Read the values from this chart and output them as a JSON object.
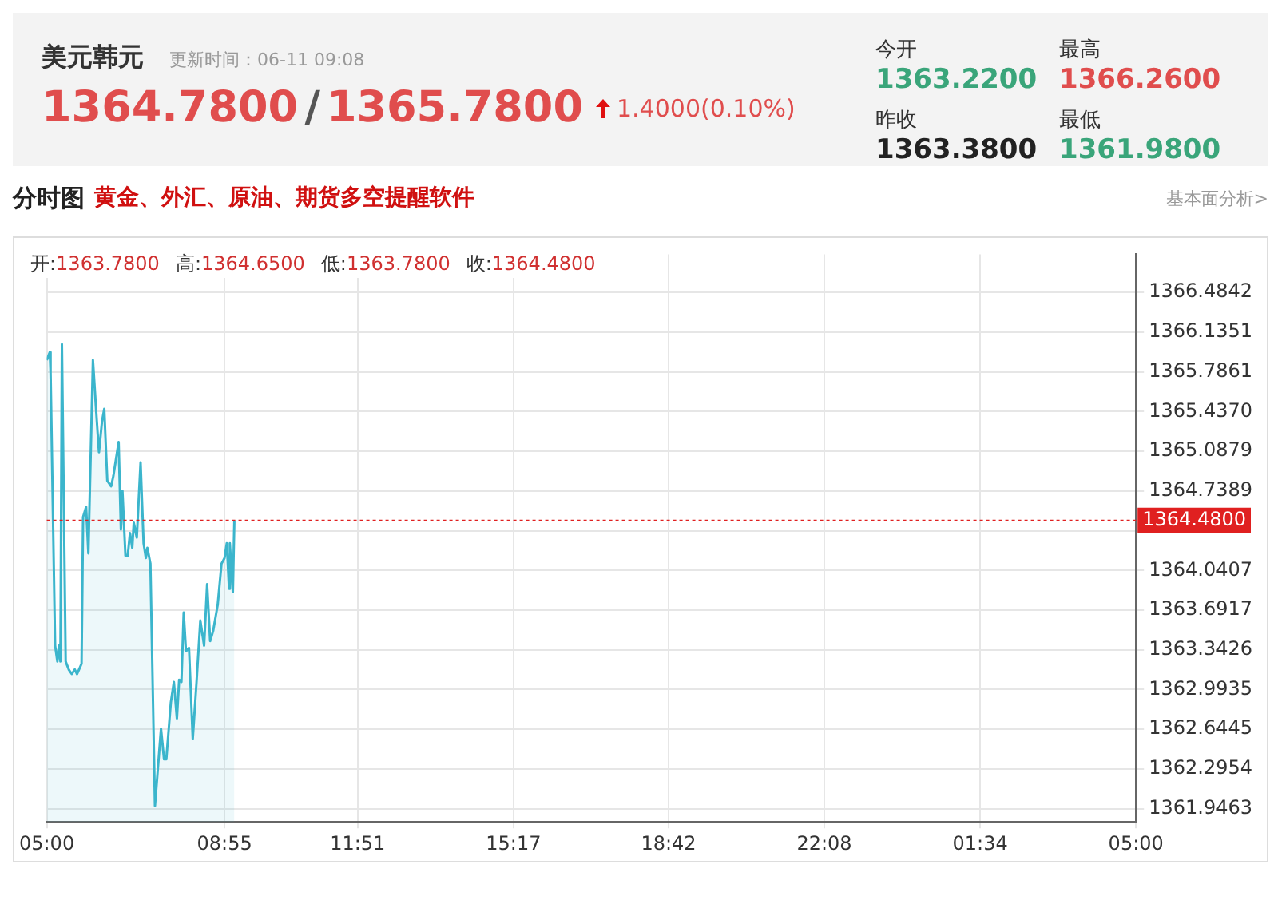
{
  "chart_data": {
    "type": "area",
    "title": "美元韩元",
    "subtitle": "更新时间：06-11 09:08",
    "annotations": [
      "1364.7800",
      "/",
      "1365.7800",
      "1.4000(0.10%)",
      "今开",
      "1363.2200",
      "昨收",
      "1363.3800",
      "最高",
      "1366.2600",
      "最低",
      "1361.9800",
      "分时图",
      "黄金、外汇、原油、期货多空提醒软件",
      "基本面分析>",
      "开:",
      "1363.7800",
      "高:",
      "1364.6500",
      "低:",
      "1363.7800",
      "收:",
      "1364.4800"
    ],
    "x": [
      "--06-11T05:00",
      "--06-11T05:04",
      "--06-11T05:05",
      "--06-11T05:11",
      "--06-11T05:14",
      "--06-11T05:16",
      "--06-11T05:18",
      "--06-11T05:20",
      "--06-11T05:25",
      "--06-11T05:29",
      "--06-11T05:33",
      "--06-11T05:37",
      "--06-11T05:40",
      "--06-11T05:46",
      "--06-11T05:48",
      "--06-11T05:52",
      "--06-11T05:55",
      "--06-11T06:01",
      "--06-11T06:06",
      "--06-11T06:09",
      "--06-11T06:13",
      "--06-11T06:16",
      "--06-11T06:20",
      "--06-11T06:25",
      "--06-11T06:28",
      "--06-11T06:35",
      "--06-11T06:38",
      "--06-11T06:40",
      "--06-11T06:44",
      "--06-11T06:47",
      "--06-11T06:50",
      "--06-11T06:53",
      "--06-11T06:55",
      "--06-11T06:59",
      "--06-11T07:04",
      "--06-11T07:08",
      "--06-11T07:11",
      "--06-11T07:13",
      "--06-11T07:17",
      "--06-11T07:23",
      "--06-11T07:31",
      "--06-11T07:35",
      "--06-11T07:38",
      "--06-11T07:44",
      "--06-11T07:48",
      "--06-11T07:52",
      "--06-11T07:55",
      "--06-11T07:58",
      "--06-11T08:01",
      "--06-11T08:04",
      "--06-11T08:08",
      "--06-11T08:13",
      "--06-11T08:18",
      "--06-11T08:23",
      "--06-11T08:28",
      "--06-11T08:32",
      "--06-11T08:36",
      "--06-11T08:40",
      "--06-11T08:46",
      "--06-11T08:51",
      "--06-11T08:55",
      "--06-11T08:58",
      "--06-11T09:01",
      "--06-11T09:02",
      "--06-11T09:06",
      "--06-11T09:08"
    ],
    "series": [
      {
        "color": "#3bb5cc",
        "values": [
          1365.89,
          1365.96,
          1365.78,
          1363.38,
          1363.24,
          1363.38,
          1363.24,
          1366.03,
          1363.24,
          1363.17,
          1363.13,
          1363.17,
          1363.13,
          1363.22,
          1364.51,
          1364.6,
          1364.19,
          1365.89,
          1365.37,
          1365.08,
          1365.35,
          1365.46,
          1364.83,
          1364.78,
          1364.87,
          1365.17,
          1364.4,
          1364.74,
          1364.17,
          1364.17,
          1364.37,
          1364.24,
          1364.46,
          1364.33,
          1364.99,
          1364.28,
          1364.15,
          1364.24,
          1364.1,
          1361.97,
          1362.65,
          1362.38,
          1362.38,
          1362.88,
          1363.06,
          1362.74,
          1363.08,
          1363.06,
          1363.67,
          1363.33,
          1363.36,
          1362.56,
          1363.06,
          1363.6,
          1363.38,
          1363.92,
          1363.42,
          1363.51,
          1363.74,
          1364.1,
          1364.15,
          1364.28,
          1363.88,
          1364.28,
          1363.85,
          1364.48
        ]
      }
    ],
    "xlim": [
      "--06-11T05:00",
      "--06-12T05:00"
    ],
    "xticks": [
      {
        "value": "--06-11T05:00",
        "label": "05:00"
      },
      {
        "value": "--06-11T08:55",
        "label": "08:55"
      },
      {
        "value": "--06-11T11:51",
        "label": "11:51"
      },
      {
        "value": "--06-11T15:17",
        "label": "15:17"
      },
      {
        "value": "--06-11T18:42",
        "label": "18:42"
      },
      {
        "value": "--06-11T22:08",
        "label": "22:08"
      },
      {
        "value": "--06-12T01:34",
        "label": "01:34"
      },
      {
        "value": "--06-12T05:00",
        "label": "05:00"
      }
    ],
    "ylim": [
      1361.83,
      1366.82
    ],
    "yticks": [
      1366.4842,
      1366.1351,
      1365.7861,
      {
        "value": 1365.437,
        "label": "1365.4370"
      },
      1365.0879,
      1364.7389,
      {
        "value": 1364.3898,
        "label": null
      },
      1364.0407,
      1363.6917,
      1363.3426,
      1362.9935,
      1362.6445,
      1362.2954,
      1361.9463
    ],
    "ref_lines": [
      {
        "axis": "y",
        "value": 1364.48,
        "label": "1364.4800",
        "color": "#e02020",
        "line_style": "dotted"
      }
    ],
    "grid": true,
    "legend": false,
    "marker": "none",
    "line_style": "solid"
  }
}
